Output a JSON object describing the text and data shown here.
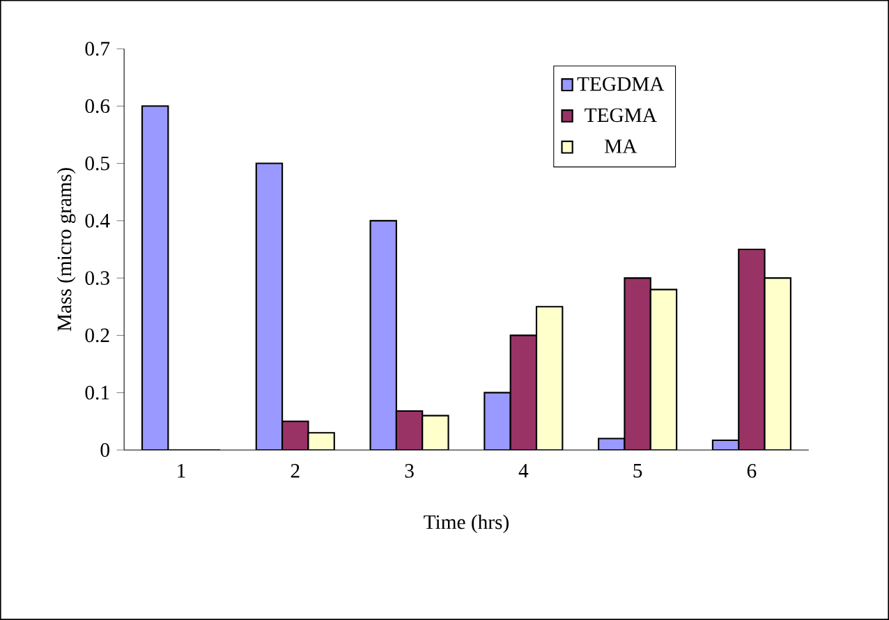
{
  "chart_data": {
    "type": "bar",
    "xlabel": "Time (hrs)",
    "ylabel": "Mass (micro grams)",
    "categories": [
      "1",
      "2",
      "3",
      "4",
      "5",
      "6"
    ],
    "series": [
      {
        "name": "TEGDMA",
        "color": "#9999ff",
        "values": [
          0.6,
          0.5,
          0.4,
          0.1,
          0.02,
          0.017
        ]
      },
      {
        "name": "TEGMA",
        "color": "#993366",
        "values": [
          0,
          0.05,
          0.068,
          0.2,
          0.3,
          0.35
        ]
      },
      {
        "name": "MA",
        "color": "#ffffcc",
        "values": [
          0,
          0.03,
          0.06,
          0.25,
          0.28,
          0.3
        ]
      }
    ],
    "ylim": [
      0,
      0.7
    ],
    "yticks": [
      0,
      0.1,
      0.2,
      0.3,
      0.4,
      0.5,
      0.6,
      0.7
    ],
    "legend": "top right"
  }
}
